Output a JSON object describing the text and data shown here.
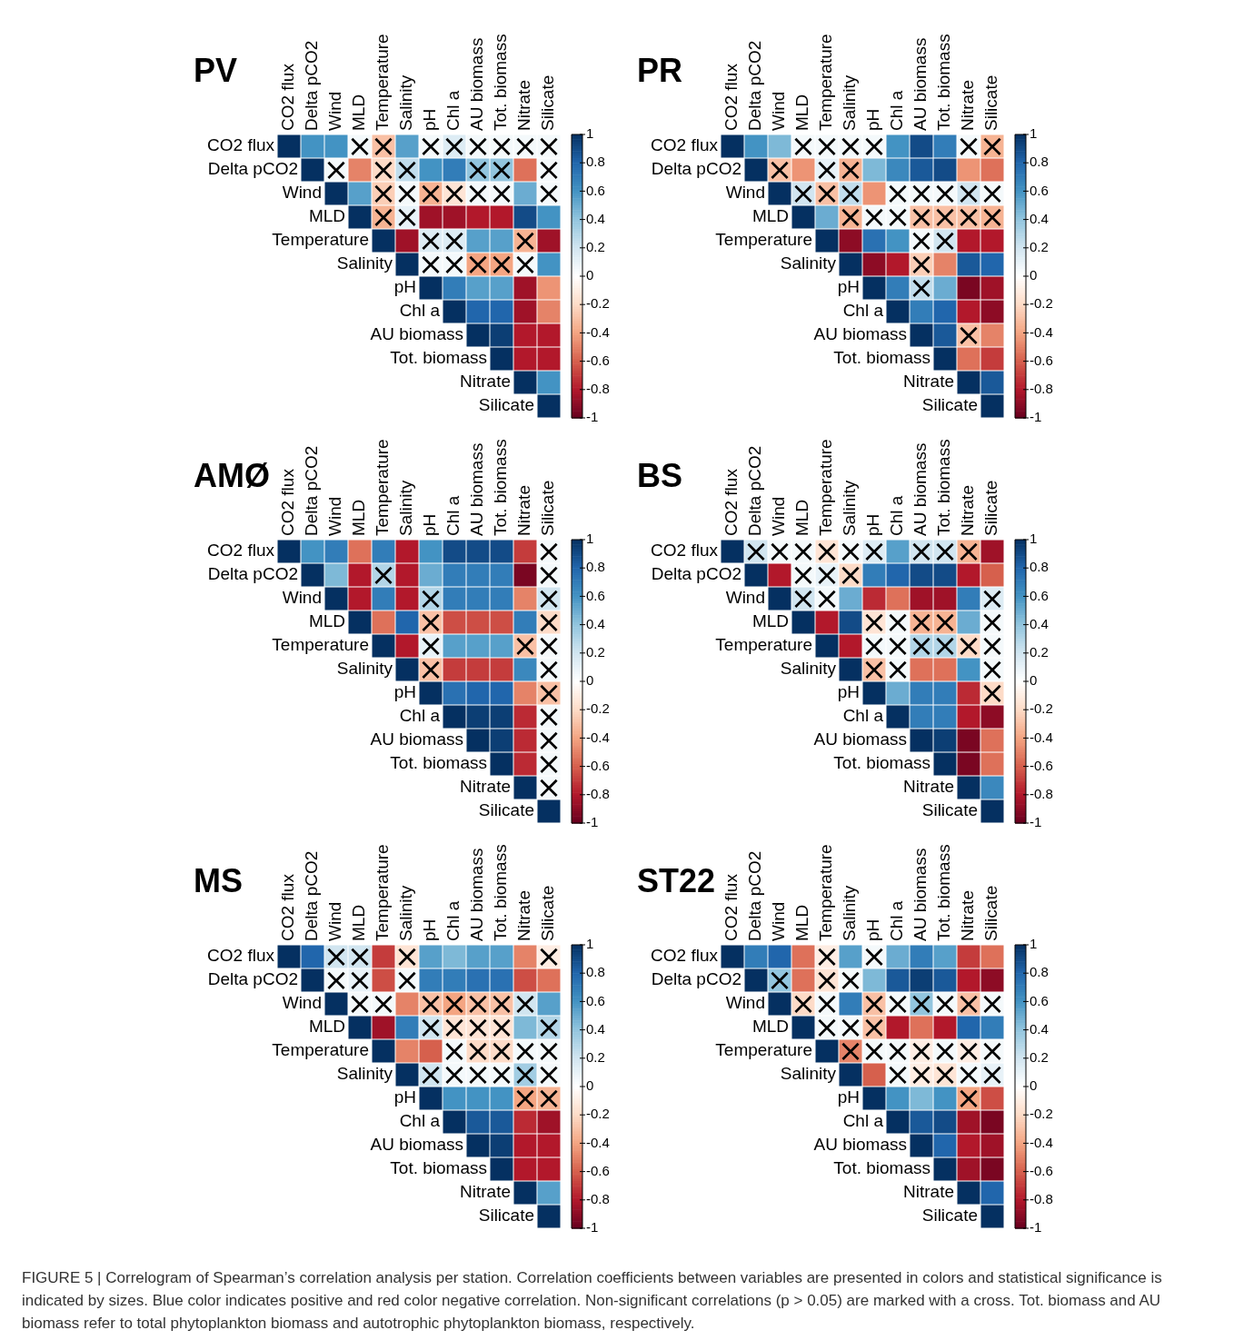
{
  "chart_data": [
    {
      "type": "heatmap",
      "title": "PV",
      "categories": [
        "CO2 flux",
        "Delta pCO2",
        "Wind",
        "MLD",
        "Temperature",
        "Salinity",
        "pH",
        "Chl a",
        "AU biomass",
        "Tot. biomass",
        "Nitrate",
        "Silicate"
      ],
      "y_categories": [
        "CO2 flux",
        "Delta pCO2",
        "Wind",
        "MLD",
        "Temperature",
        "Salinity",
        "pH",
        "Chl a",
        "AU biomass",
        "Tot. biomass",
        "Nitrate",
        "Silicate"
      ],
      "cells": [
        [
          1,
          0.6,
          0.6,
          0.05,
          -0.3,
          0.55,
          0.05,
          0.15,
          0.05,
          0.05,
          0.05,
          0.05
        ],
        [
          null,
          1,
          0.05,
          -0.5,
          -0.2,
          0.25,
          0.6,
          0.7,
          0.4,
          0.4,
          -0.55,
          0.05
        ],
        [
          null,
          null,
          1,
          0.55,
          -0.25,
          0.05,
          -0.35,
          -0.15,
          0.05,
          0.05,
          0.5,
          0.05
        ],
        [
          null,
          null,
          null,
          1,
          -0.35,
          0.1,
          -0.85,
          -0.85,
          -0.8,
          -0.8,
          0.9,
          0.6
        ],
        [
          null,
          null,
          null,
          null,
          1,
          -0.85,
          0.15,
          0.15,
          0.55,
          0.55,
          -0.35,
          -0.85
        ],
        [
          null,
          null,
          null,
          null,
          null,
          1,
          0.05,
          0.05,
          -0.4,
          -0.4,
          0.05,
          0.6
        ],
        [
          null,
          null,
          null,
          null,
          null,
          null,
          1,
          0.7,
          0.55,
          0.55,
          -0.85,
          -0.45
        ],
        [
          null,
          null,
          null,
          null,
          null,
          null,
          null,
          1,
          0.8,
          0.8,
          -0.85,
          -0.5
        ],
        [
          null,
          null,
          null,
          null,
          null,
          null,
          null,
          null,
          1,
          0.95,
          -0.8,
          -0.8
        ],
        [
          null,
          null,
          null,
          null,
          null,
          null,
          null,
          null,
          null,
          1,
          -0.8,
          -0.8
        ],
        [
          null,
          null,
          null,
          null,
          null,
          null,
          null,
          null,
          null,
          null,
          1,
          0.6
        ],
        [
          null,
          null,
          null,
          null,
          null,
          null,
          null,
          null,
          null,
          null,
          null,
          1
        ]
      ],
      "cell_labels": [
        [
          null,
          null,
          null,
          "×",
          "×",
          null,
          "×",
          "×",
          "×",
          "×",
          "×",
          "×"
        ],
        [
          null,
          null,
          "×",
          null,
          "×",
          "×",
          null,
          null,
          "×",
          "×",
          null,
          "×"
        ],
        [
          null,
          null,
          null,
          null,
          "×",
          "×",
          "×",
          "×",
          "×",
          "×",
          null,
          "×"
        ],
        [
          null,
          null,
          null,
          null,
          "×",
          "×",
          null,
          null,
          null,
          null,
          null,
          null
        ],
        [
          null,
          null,
          null,
          null,
          null,
          null,
          "×",
          "×",
          null,
          null,
          "×",
          null
        ],
        [
          null,
          null,
          null,
          null,
          null,
          null,
          "×",
          "×",
          "×",
          "×",
          "×",
          null
        ],
        [
          null,
          null,
          null,
          null,
          null,
          null,
          null,
          null,
          null,
          null,
          null,
          null
        ],
        [
          null,
          null,
          null,
          null,
          null,
          null,
          null,
          null,
          null,
          null,
          null,
          null
        ],
        [
          null,
          null,
          null,
          null,
          null,
          null,
          null,
          null,
          null,
          null,
          null,
          null
        ],
        [
          null,
          null,
          null,
          null,
          null,
          null,
          null,
          null,
          null,
          null,
          null,
          null
        ],
        [
          null,
          null,
          null,
          null,
          null,
          null,
          null,
          null,
          null,
          null,
          null,
          null
        ],
        [
          null,
          null,
          null,
          null,
          null,
          null,
          null,
          null,
          null,
          null,
          null,
          null
        ]
      ],
      "clim": [
        -1,
        1
      ],
      "cticks": [
        -1,
        -0.8,
        -0.6,
        -0.4,
        -0.2,
        0,
        0.2,
        0.4,
        0.6,
        0.8,
        1
      ],
      "annotations": [
        "FIGURE 5 | Correlogram of Spearman’s correlation analysis per station. Correlation coefficients between variables are presented in colors and statistical significance is indicated by sizes. Blue color indicates positive and red color negative correlation. Non-significant correlations (p  >  0.05) are marked with a cross. Tot. biomass and AU biomass refer to total phytoplankton biomass and autotrophic phytoplankton biomass, respectively."
      ]
    },
    {
      "type": "heatmap",
      "title": "PR",
      "categories": [
        "CO2 flux",
        "Delta pCO2",
        "Wind",
        "MLD",
        "Temperature",
        "Salinity",
        "pH",
        "Chl a",
        "AU biomass",
        "Tot. biomass",
        "Nitrate",
        "Silicate"
      ],
      "y_categories": [
        "CO2 flux",
        "Delta pCO2",
        "Wind",
        "MLD",
        "Temperature",
        "Salinity",
        "pH",
        "Chl a",
        "AU biomass",
        "Tot. biomass",
        "Nitrate",
        "Silicate"
      ],
      "cells": [
        [
          1,
          0.6,
          0.45,
          0.05,
          0.05,
          0.05,
          0.05,
          0.6,
          0.9,
          0.7,
          0.05,
          -0.35
        ],
        [
          null,
          1,
          -0.3,
          -0.45,
          0.1,
          -0.35,
          0.45,
          0.65,
          0.85,
          0.9,
          -0.45,
          -0.55
        ],
        [
          null,
          null,
          1,
          0.2,
          -0.3,
          0.25,
          -0.45,
          0.05,
          0.05,
          0.05,
          0.2,
          0.05
        ],
        [
          null,
          null,
          null,
          1,
          0.5,
          -0.35,
          0.05,
          0.05,
          -0.3,
          -0.3,
          -0.3,
          -0.35
        ],
        [
          null,
          null,
          null,
          null,
          1,
          -0.9,
          0.75,
          0.6,
          0.05,
          0.2,
          -0.8,
          -0.8
        ],
        [
          null,
          null,
          null,
          null,
          null,
          1,
          -0.9,
          -0.8,
          -0.25,
          -0.5,
          0.85,
          0.8
        ],
        [
          null,
          null,
          null,
          null,
          null,
          null,
          1,
          0.7,
          0.25,
          0.5,
          -0.95,
          -0.85
        ],
        [
          null,
          null,
          null,
          null,
          null,
          null,
          null,
          1,
          0.7,
          0.8,
          -0.8,
          -0.9
        ],
        [
          null,
          null,
          null,
          null,
          null,
          null,
          null,
          null,
          1,
          0.85,
          -0.3,
          -0.5
        ],
        [
          null,
          null,
          null,
          null,
          null,
          null,
          null,
          null,
          null,
          1,
          -0.55,
          -0.7
        ],
        [
          null,
          null,
          null,
          null,
          null,
          null,
          null,
          null,
          null,
          null,
          1,
          0.85
        ],
        [
          null,
          null,
          null,
          null,
          null,
          null,
          null,
          null,
          null,
          null,
          null,
          1
        ]
      ],
      "cell_labels": [
        [
          null,
          null,
          null,
          "×",
          "×",
          "×",
          "×",
          null,
          null,
          null,
          "×",
          "×"
        ],
        [
          null,
          null,
          "×",
          null,
          "×",
          "×",
          null,
          null,
          null,
          null,
          null,
          null
        ],
        [
          null,
          null,
          null,
          "×",
          "×",
          "×",
          null,
          "×",
          "×",
          "×",
          "×",
          "×"
        ],
        [
          null,
          null,
          null,
          null,
          null,
          "×",
          "×",
          "×",
          "×",
          "×",
          "×",
          "×"
        ],
        [
          null,
          null,
          null,
          null,
          null,
          null,
          null,
          null,
          "×",
          "×",
          null,
          null
        ],
        [
          null,
          null,
          null,
          null,
          null,
          null,
          null,
          null,
          "×",
          null,
          null,
          null
        ],
        [
          null,
          null,
          null,
          null,
          null,
          null,
          null,
          null,
          "×",
          null,
          null,
          null
        ],
        [
          null,
          null,
          null,
          null,
          null,
          null,
          null,
          null,
          null,
          null,
          null,
          null
        ],
        [
          null,
          null,
          null,
          null,
          null,
          null,
          null,
          null,
          null,
          null,
          "×",
          null
        ],
        [
          null,
          null,
          null,
          null,
          null,
          null,
          null,
          null,
          null,
          null,
          null,
          null
        ],
        [
          null,
          null,
          null,
          null,
          null,
          null,
          null,
          null,
          null,
          null,
          null,
          null
        ],
        [
          null,
          null,
          null,
          null,
          null,
          null,
          null,
          null,
          null,
          null,
          null,
          null
        ]
      ],
      "clim": [
        -1,
        1
      ],
      "cticks": [
        -1,
        -0.8,
        -0.6,
        -0.4,
        -0.2,
        0,
        0.2,
        0.4,
        0.6,
        0.8,
        1
      ]
    },
    {
      "type": "heatmap",
      "title": "AMØ",
      "categories": [
        "CO2 flux",
        "Delta pCO2",
        "Wind",
        "MLD",
        "Temperature",
        "Salinity",
        "pH",
        "Chl a",
        "AU biomass",
        "Tot. biomass",
        "Nitrate",
        "Silicate"
      ],
      "y_categories": [
        "CO2 flux",
        "Delta pCO2",
        "Wind",
        "MLD",
        "Temperature",
        "Salinity",
        "pH",
        "Chl a",
        "AU biomass",
        "Tot. biomass",
        "Nitrate",
        "Silicate"
      ],
      "cells": [
        [
          1,
          0.6,
          0.7,
          -0.55,
          0.7,
          -0.8,
          0.6,
          0.9,
          0.9,
          0.9,
          -0.7,
          0.05
        ],
        [
          null,
          1,
          0.45,
          -0.8,
          0.3,
          -0.8,
          0.5,
          0.7,
          0.7,
          0.7,
          -0.95,
          0.05
        ],
        [
          null,
          null,
          1,
          -0.8,
          0.7,
          -0.8,
          0.3,
          0.7,
          0.7,
          0.7,
          -0.5,
          0.2
        ],
        [
          null,
          null,
          null,
          1,
          -0.55,
          0.8,
          -0.3,
          -0.65,
          -0.65,
          -0.65,
          0.7,
          -0.2
        ],
        [
          null,
          null,
          null,
          null,
          1,
          -0.8,
          0.1,
          0.55,
          0.55,
          0.55,
          -0.3,
          0.05
        ],
        [
          null,
          null,
          null,
          null,
          null,
          1,
          -0.3,
          -0.7,
          -0.7,
          -0.7,
          0.65,
          0.05
        ],
        [
          null,
          null,
          null,
          null,
          null,
          null,
          1,
          0.75,
          0.8,
          0.8,
          -0.5,
          -0.3
        ],
        [
          null,
          null,
          null,
          null,
          null,
          null,
          null,
          1,
          0.95,
          0.95,
          -0.75,
          0.05
        ],
        [
          null,
          null,
          null,
          null,
          null,
          null,
          null,
          null,
          1,
          0.95,
          -0.75,
          0.05
        ],
        [
          null,
          null,
          null,
          null,
          null,
          null,
          null,
          null,
          null,
          1,
          -0.75,
          0.05
        ],
        [
          null,
          null,
          null,
          null,
          null,
          null,
          null,
          null,
          null,
          null,
          1,
          0.05
        ],
        [
          null,
          null,
          null,
          null,
          null,
          null,
          null,
          null,
          null,
          null,
          null,
          1
        ]
      ],
      "cell_labels": [
        [
          null,
          null,
          null,
          null,
          null,
          null,
          null,
          null,
          null,
          null,
          null,
          "×"
        ],
        [
          null,
          null,
          null,
          null,
          "×",
          null,
          null,
          null,
          null,
          null,
          null,
          "×"
        ],
        [
          null,
          null,
          null,
          null,
          null,
          null,
          "×",
          null,
          null,
          null,
          null,
          "×"
        ],
        [
          null,
          null,
          null,
          null,
          null,
          null,
          "×",
          null,
          null,
          null,
          null,
          "×"
        ],
        [
          null,
          null,
          null,
          null,
          null,
          null,
          "×",
          null,
          null,
          null,
          "×",
          "×"
        ],
        [
          null,
          null,
          null,
          null,
          null,
          null,
          "×",
          null,
          null,
          null,
          null,
          "×"
        ],
        [
          null,
          null,
          null,
          null,
          null,
          null,
          null,
          null,
          null,
          null,
          null,
          "×"
        ],
        [
          null,
          null,
          null,
          null,
          null,
          null,
          null,
          null,
          null,
          null,
          null,
          "×"
        ],
        [
          null,
          null,
          null,
          null,
          null,
          null,
          null,
          null,
          null,
          null,
          null,
          "×"
        ],
        [
          null,
          null,
          null,
          null,
          null,
          null,
          null,
          null,
          null,
          null,
          null,
          "×"
        ],
        [
          null,
          null,
          null,
          null,
          null,
          null,
          null,
          null,
          null,
          null,
          null,
          "×"
        ],
        [
          null,
          null,
          null,
          null,
          null,
          null,
          null,
          null,
          null,
          null,
          null,
          null
        ]
      ],
      "clim": [
        -1,
        1
      ],
      "cticks": [
        -1,
        -0.8,
        -0.6,
        -0.4,
        -0.2,
        0,
        0.2,
        0.4,
        0.6,
        0.8,
        1
      ]
    },
    {
      "type": "heatmap",
      "title": "BS",
      "categories": [
        "CO2 flux",
        "Delta pCO2",
        "Wind",
        "MLD",
        "Temperature",
        "Salinity",
        "pH",
        "Chl a",
        "AU biomass",
        "Tot. biomass",
        "Nitrate",
        "Silicate"
      ],
      "y_categories": [
        "CO2 flux",
        "Delta pCO2",
        "Wind",
        "MLD",
        "Temperature",
        "Salinity",
        "pH",
        "Chl a",
        "AU biomass",
        "Tot. biomass",
        "Nitrate",
        "Silicate"
      ],
      "cells": [
        [
          1,
          0.2,
          0.05,
          0.05,
          -0.15,
          0.05,
          0.15,
          0.55,
          0.2,
          0.2,
          -0.35,
          -0.85
        ],
        [
          null,
          1,
          -0.8,
          0.05,
          0.1,
          -0.2,
          0.7,
          0.8,
          0.9,
          0.9,
          -0.8,
          -0.6
        ],
        [
          null,
          null,
          1,
          0.2,
          0.05,
          0.5,
          -0.75,
          -0.55,
          -0.85,
          -0.85,
          0.7,
          0.15
        ],
        [
          null,
          null,
          null,
          1,
          -0.8,
          0.9,
          -0.15,
          0.05,
          -0.35,
          -0.35,
          0.5,
          0.05
        ],
        [
          null,
          null,
          null,
          null,
          1,
          -0.8,
          0.05,
          0.05,
          0.3,
          0.3,
          -0.2,
          0.05
        ],
        [
          null,
          null,
          null,
          null,
          null,
          1,
          -0.3,
          0.05,
          -0.55,
          -0.55,
          0.6,
          0.05
        ],
        [
          null,
          null,
          null,
          null,
          null,
          null,
          1,
          0.5,
          0.7,
          0.7,
          -0.75,
          -0.2
        ],
        [
          null,
          null,
          null,
          null,
          null,
          null,
          null,
          1,
          0.7,
          0.7,
          -0.8,
          -0.9
        ],
        [
          null,
          null,
          null,
          null,
          null,
          null,
          null,
          null,
          1,
          0.95,
          -0.95,
          -0.55
        ],
        [
          null,
          null,
          null,
          null,
          null,
          null,
          null,
          null,
          null,
          1,
          -0.95,
          -0.55
        ],
        [
          null,
          null,
          null,
          null,
          null,
          null,
          null,
          null,
          null,
          null,
          1,
          0.65
        ],
        [
          null,
          null,
          null,
          null,
          null,
          null,
          null,
          null,
          null,
          null,
          null,
          1
        ]
      ],
      "cell_labels": [
        [
          null,
          "×",
          "×",
          "×",
          "×",
          "×",
          "×",
          null,
          "×",
          "×",
          "×",
          null
        ],
        [
          null,
          null,
          null,
          "×",
          "×",
          "×",
          null,
          null,
          null,
          null,
          null,
          null
        ],
        [
          null,
          null,
          null,
          "×",
          "×",
          null,
          null,
          null,
          null,
          null,
          null,
          "×"
        ],
        [
          null,
          null,
          null,
          null,
          null,
          null,
          "×",
          "×",
          "×",
          "×",
          null,
          "×"
        ],
        [
          null,
          null,
          null,
          null,
          null,
          null,
          "×",
          "×",
          "×",
          "×",
          "×",
          "×"
        ],
        [
          null,
          null,
          null,
          null,
          null,
          null,
          "×",
          "×",
          null,
          null,
          null,
          "×"
        ],
        [
          null,
          null,
          null,
          null,
          null,
          null,
          null,
          null,
          null,
          null,
          null,
          "×"
        ],
        [
          null,
          null,
          null,
          null,
          null,
          null,
          null,
          null,
          null,
          null,
          null,
          null
        ],
        [
          null,
          null,
          null,
          null,
          null,
          null,
          null,
          null,
          null,
          null,
          null,
          null
        ],
        [
          null,
          null,
          null,
          null,
          null,
          null,
          null,
          null,
          null,
          null,
          null,
          null
        ],
        [
          null,
          null,
          null,
          null,
          null,
          null,
          null,
          null,
          null,
          null,
          null,
          null
        ],
        [
          null,
          null,
          null,
          null,
          null,
          null,
          null,
          null,
          null,
          null,
          null,
          null
        ]
      ],
      "clim": [
        -1,
        1
      ],
      "cticks": [
        -1,
        -0.8,
        -0.6,
        -0.4,
        -0.2,
        0,
        0.2,
        0.4,
        0.6,
        0.8,
        1
      ]
    },
    {
      "type": "heatmap",
      "title": "MS",
      "categories": [
        "CO2 flux",
        "Delta pCO2",
        "Wind",
        "MLD",
        "Temperature",
        "Salinity",
        "pH",
        "Chl a",
        "AU biomass",
        "Tot. biomass",
        "Nitrate",
        "Silicate"
      ],
      "y_categories": [
        "CO2 flux",
        "Delta pCO2",
        "Wind",
        "MLD",
        "Temperature",
        "Salinity",
        "pH",
        "Chl a",
        "AU biomass",
        "Tot. biomass",
        "Nitrate",
        "Silicate"
      ],
      "cells": [
        [
          1,
          0.8,
          0.2,
          0.2,
          -0.7,
          -0.15,
          0.55,
          0.45,
          0.55,
          0.55,
          -0.5,
          -0.1
        ],
        [
          null,
          1,
          0.05,
          0.1,
          -0.65,
          0.05,
          0.7,
          0.7,
          0.75,
          0.75,
          -0.65,
          -0.55
        ],
        [
          null,
          null,
          1,
          0.05,
          0.05,
          -0.5,
          -0.3,
          -0.4,
          -0.3,
          -0.3,
          0.2,
          0.55
        ],
        [
          null,
          null,
          null,
          1,
          -0.85,
          0.7,
          0.2,
          -0.15,
          -0.15,
          -0.15,
          0.45,
          0.3
        ],
        [
          null,
          null,
          null,
          null,
          1,
          -0.5,
          -0.6,
          0.05,
          -0.2,
          -0.2,
          0.05,
          0.05
        ],
        [
          null,
          null,
          null,
          null,
          null,
          1,
          0.2,
          0.05,
          0.05,
          0.05,
          0.35,
          0.05
        ],
        [
          null,
          null,
          null,
          null,
          null,
          null,
          1,
          0.6,
          0.6,
          0.6,
          -0.4,
          -0.35
        ],
        [
          null,
          null,
          null,
          null,
          null,
          null,
          null,
          1,
          0.85,
          0.85,
          -0.75,
          -0.85
        ],
        [
          null,
          null,
          null,
          null,
          null,
          null,
          null,
          null,
          1,
          0.95,
          -0.8,
          -0.8
        ],
        [
          null,
          null,
          null,
          null,
          null,
          null,
          null,
          null,
          null,
          1,
          -0.8,
          -0.8
        ],
        [
          null,
          null,
          null,
          null,
          null,
          null,
          null,
          null,
          null,
          null,
          1,
          0.55
        ],
        [
          null,
          null,
          null,
          null,
          null,
          null,
          null,
          null,
          null,
          null,
          null,
          1
        ]
      ],
      "cell_labels": [
        [
          null,
          null,
          "×",
          "×",
          null,
          "×",
          null,
          null,
          null,
          null,
          null,
          "×"
        ],
        [
          null,
          null,
          "×",
          "×",
          null,
          "×",
          null,
          null,
          null,
          null,
          null,
          null
        ],
        [
          null,
          null,
          null,
          "×",
          "×",
          null,
          "×",
          "×",
          "×",
          "×",
          "×",
          null
        ],
        [
          null,
          null,
          null,
          null,
          null,
          null,
          "×",
          "×",
          "×",
          "×",
          null,
          "×"
        ],
        [
          null,
          null,
          null,
          null,
          null,
          null,
          null,
          "×",
          "×",
          "×",
          "×",
          "×"
        ],
        [
          null,
          null,
          null,
          null,
          null,
          null,
          "×",
          "×",
          "×",
          "×",
          "×",
          "×"
        ],
        [
          null,
          null,
          null,
          null,
          null,
          null,
          null,
          null,
          null,
          null,
          "×",
          "×"
        ],
        [
          null,
          null,
          null,
          null,
          null,
          null,
          null,
          null,
          null,
          null,
          null,
          null
        ],
        [
          null,
          null,
          null,
          null,
          null,
          null,
          null,
          null,
          null,
          null,
          null,
          null
        ],
        [
          null,
          null,
          null,
          null,
          null,
          null,
          null,
          null,
          null,
          null,
          null,
          null
        ],
        [
          null,
          null,
          null,
          null,
          null,
          null,
          null,
          null,
          null,
          null,
          null,
          null
        ],
        [
          null,
          null,
          null,
          null,
          null,
          null,
          null,
          null,
          null,
          null,
          null,
          null
        ]
      ],
      "clim": [
        -1,
        1
      ],
      "cticks": [
        -1,
        -0.8,
        -0.6,
        -0.4,
        -0.2,
        0,
        0.2,
        0.4,
        0.6,
        0.8,
        1
      ]
    },
    {
      "type": "heatmap",
      "title": "ST22",
      "categories": [
        "CO2 flux",
        "Delta pCO2",
        "Wind",
        "MLD",
        "Temperature",
        "Salinity",
        "pH",
        "Chl a",
        "AU biomass",
        "Tot. biomass",
        "Nitrate",
        "Silicate"
      ],
      "y_categories": [
        "CO2 flux",
        "Delta pCO2",
        "Wind",
        "MLD",
        "Temperature",
        "Salinity",
        "pH",
        "Chl a",
        "AU biomass",
        "Tot. biomass",
        "Nitrate",
        "Silicate"
      ],
      "cells": [
        [
          1,
          0.7,
          0.8,
          -0.55,
          -0.1,
          0.55,
          0.05,
          0.5,
          0.7,
          0.55,
          -0.7,
          -0.55
        ],
        [
          null,
          1,
          0.4,
          -0.55,
          -0.15,
          0.05,
          0.45,
          0.85,
          0.95,
          0.85,
          -0.8,
          -0.9
        ],
        [
          null,
          null,
          1,
          -0.2,
          0.05,
          0.7,
          -0.3,
          0.05,
          0.4,
          0.05,
          -0.3,
          0.05
        ],
        [
          null,
          null,
          null,
          1,
          0.05,
          0.05,
          -0.3,
          -0.8,
          -0.55,
          -0.8,
          0.8,
          0.7
        ],
        [
          null,
          null,
          null,
          null,
          1,
          -0.5,
          0.05,
          0.05,
          -0.1,
          0.05,
          -0.1,
          0.05
        ],
        [
          null,
          null,
          null,
          null,
          null,
          1,
          -0.6,
          0.05,
          -0.1,
          -0.15,
          0.05,
          0.1
        ],
        [
          null,
          null,
          null,
          null,
          null,
          null,
          1,
          0.6,
          0.45,
          0.6,
          -0.4,
          -0.65
        ],
        [
          null,
          null,
          null,
          null,
          null,
          null,
          null,
          1,
          0.85,
          0.9,
          -0.85,
          -0.95
        ],
        [
          null,
          null,
          null,
          null,
          null,
          null,
          null,
          null,
          1,
          0.8,
          -0.8,
          -0.85
        ],
        [
          null,
          null,
          null,
          null,
          null,
          null,
          null,
          null,
          null,
          1,
          -0.85,
          -0.95
        ],
        [
          null,
          null,
          null,
          null,
          null,
          null,
          null,
          null,
          null,
          null,
          1,
          0.8
        ],
        [
          null,
          null,
          null,
          null,
          null,
          null,
          null,
          null,
          null,
          null,
          null,
          1
        ]
      ],
      "cell_labels": [
        [
          null,
          null,
          null,
          null,
          "×",
          null,
          "×",
          null,
          null,
          null,
          null,
          null
        ],
        [
          null,
          null,
          "×",
          null,
          "×",
          "×",
          null,
          null,
          null,
          null,
          null,
          null
        ],
        [
          null,
          null,
          null,
          "×",
          "×",
          null,
          "×",
          "×",
          "×",
          "×",
          "×",
          "×"
        ],
        [
          null,
          null,
          null,
          null,
          "×",
          "×",
          "×",
          null,
          null,
          null,
          null,
          null
        ],
        [
          null,
          null,
          null,
          null,
          null,
          "×",
          "×",
          "×",
          "×",
          "×",
          "×",
          "×"
        ],
        [
          null,
          null,
          null,
          null,
          null,
          null,
          null,
          "×",
          "×",
          "×",
          "×",
          "×"
        ],
        [
          null,
          null,
          null,
          null,
          null,
          null,
          null,
          null,
          null,
          null,
          "×",
          null
        ],
        [
          null,
          null,
          null,
          null,
          null,
          null,
          null,
          null,
          null,
          null,
          null,
          null
        ],
        [
          null,
          null,
          null,
          null,
          null,
          null,
          null,
          null,
          null,
          null,
          null,
          null
        ],
        [
          null,
          null,
          null,
          null,
          null,
          null,
          null,
          null,
          null,
          null,
          null,
          null
        ],
        [
          null,
          null,
          null,
          null,
          null,
          null,
          null,
          null,
          null,
          null,
          null,
          null
        ],
        [
          null,
          null,
          null,
          null,
          null,
          null,
          null,
          null,
          null,
          null,
          null,
          null
        ]
      ],
      "clim": [
        -1,
        1
      ],
      "cticks": [
        -1,
        -0.8,
        -0.6,
        -0.4,
        -0.2,
        0,
        0.2,
        0.4,
        0.6,
        0.8,
        1
      ]
    }
  ]
}
